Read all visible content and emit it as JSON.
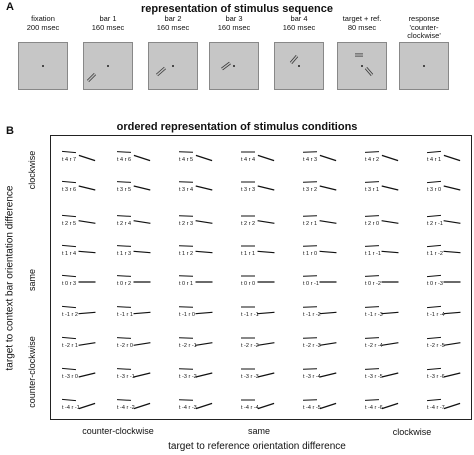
{
  "panel_a": {
    "letter": "A",
    "title": "representation of stimulus sequence",
    "frames": [
      {
        "name": "fixation",
        "duration": "200 msec"
      },
      {
        "name": "bar 1",
        "duration": "160 msec"
      },
      {
        "name": "bar 2",
        "duration": "160 msec"
      },
      {
        "name": "bar 3",
        "duration": "160 msec"
      },
      {
        "name": "bar 4",
        "duration": "160 msec"
      },
      {
        "name": "target + ref.",
        "duration": "80 msec"
      },
      {
        "name": "response",
        "duration": "'counter-clockwise'"
      }
    ]
  },
  "panel_b": {
    "letter": "B",
    "title": "ordered representation of stimulus conditions",
    "y_axis_title": "target to context bar orientation difference",
    "y_group_labels": [
      "clockwise",
      "same",
      "counter-clockwise"
    ],
    "x_axis_title": "target to reference orientation difference",
    "x_group_labels": [
      "counter-clockwise",
      "same",
      "clockwise"
    ],
    "rows": [
      [
        "t 4 r 7",
        "t 4 r 6",
        "t 4 r 5",
        "t 4 r 4",
        "t 4 r 3",
        "t 4 r 2",
        "t 4 r 1"
      ],
      [
        "t 3 r 6",
        "t 3 r 5",
        "t 3 r 4",
        "t 3 r 3",
        "t 3 r 2",
        "t 3 r 1",
        "t 3 r 0"
      ],
      [
        "t 2 r 5",
        "t 2 r 4",
        "t 2 r 3",
        "t 2 r 2",
        "t 2 r 1",
        "t 2 r 0",
        "t 2 r -1"
      ],
      [
        "t 1 r 4",
        "t 1 r 3",
        "t 1 r 2",
        "t 1 r 1",
        "t 1 r 0",
        "t 1 r -1",
        "t 1 r -2"
      ],
      [
        "t 0 r 3",
        "t 0 r 2",
        "t 0 r 1",
        "t 0 r 0",
        "t 0 r -1",
        "t 0 r -2",
        "t 0 r -3"
      ],
      [
        "t -1 r 2",
        "t -1 r 1",
        "t -1 r 0",
        "t -1 r -1",
        "t -1 r -2",
        "t -1 r -3",
        "t -1 r -4"
      ],
      [
        "t -2 r 1",
        "t -2 r 0",
        "t -2 r -1",
        "t -2 r -2",
        "t -2 r -3",
        "t -2 r -4",
        "t -2 r -5"
      ],
      [
        "t -3 r 0",
        "t -3 r -1",
        "t -3 r -2",
        "t -3 r -3",
        "t -3 r -4",
        "t -3 r -5",
        "t -3 r -6"
      ],
      [
        "t -4 r -1",
        "t -4 r -2",
        "t -4 r -3",
        "t -4 r -4",
        "t -4 r -5",
        "t -4 r -6",
        "t -4 r -7"
      ]
    ]
  }
}
